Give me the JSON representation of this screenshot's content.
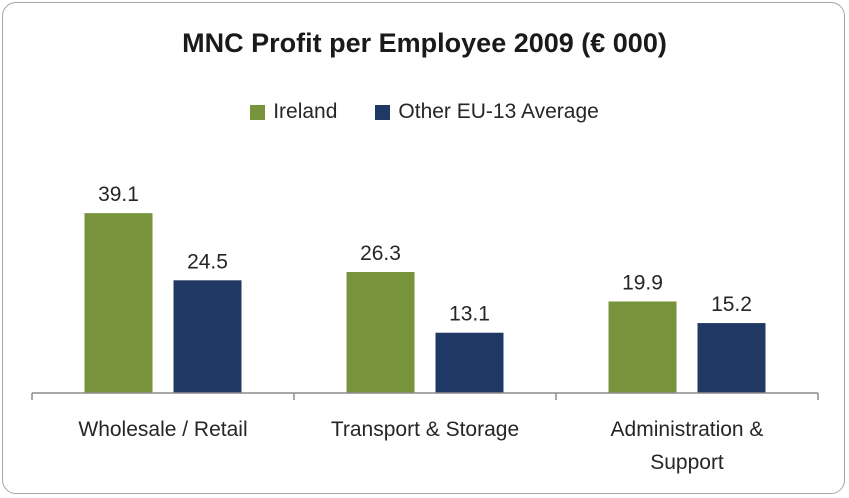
{
  "chart_data": {
    "type": "bar",
    "title": "MNC Profit per Employee 2009 (€ 000)",
    "categories": [
      [
        "Wholesale / Retail"
      ],
      [
        "Transport & Storage"
      ],
      [
        "Administration &",
        "Support"
      ]
    ],
    "series": [
      {
        "name": "Ireland",
        "color": "#77933c",
        "values": [
          39.1,
          26.3,
          19.9
        ]
      },
      {
        "name": "Other EU-13 Average",
        "color": "#1f3864",
        "values": [
          24.5,
          13.1,
          15.2
        ]
      }
    ],
    "data_labels": [
      [
        "39.1",
        "26.3",
        "19.9"
      ],
      [
        "24.5",
        "13.1",
        "15.2"
      ]
    ],
    "ylim": [
      0,
      45
    ],
    "grid": false,
    "legend_position": "top"
  }
}
